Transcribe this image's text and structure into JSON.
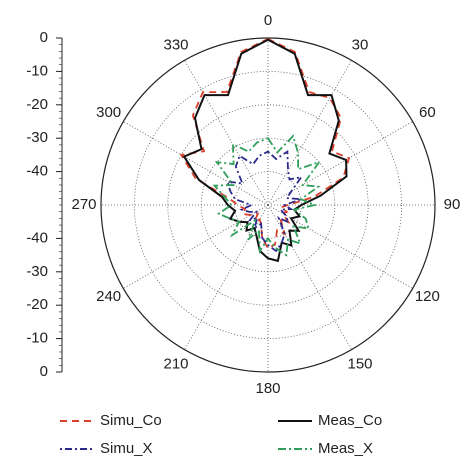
{
  "chart_data": {
    "type": "polar",
    "rlim": [
      -50,
      0
    ],
    "rticks": [
      0,
      -10,
      -20,
      -30,
      -40
    ],
    "angle_ticks": [
      0,
      30,
      60,
      90,
      120,
      150,
      180,
      210,
      240,
      270,
      300,
      330
    ],
    "theta": [
      0,
      10,
      20,
      30,
      40,
      50,
      60,
      70,
      80,
      90,
      100,
      110,
      120,
      130,
      140,
      150,
      160,
      170,
      180,
      190,
      200,
      210,
      220,
      230,
      240,
      250,
      260,
      270,
      280,
      290,
      300,
      310,
      320,
      330,
      340,
      350
    ],
    "series": [
      {
        "name": "Simu_Co",
        "color": "#d9402a",
        "dash": "7,5",
        "values": [
          -0.3,
          -3.5,
          -14,
          -13,
          -16,
          -25,
          -22,
          -26,
          -36,
          -44,
          -46,
          -44,
          -45,
          -42,
          -44,
          -40,
          -42,
          -38,
          -37,
          -40,
          -44,
          -45,
          -44,
          -46,
          -44,
          -42,
          -43,
          -41,
          -38,
          -27,
          -20,
          -25,
          -15,
          -11,
          -14,
          -3.5
        ]
      },
      {
        "name": "Meas_Co",
        "color": "#111111",
        "dash": "none",
        "values": [
          -0.5,
          -4,
          -15,
          -12,
          -17,
          -26,
          -23,
          -25,
          -34,
          -40,
          -42,
          -40,
          -42,
          -38,
          -40,
          -36,
          -38,
          -33,
          -34,
          -36,
          -40,
          -42,
          -40,
          -42,
          -40,
          -38,
          -40,
          -38,
          -36,
          -28,
          -21,
          -24,
          -16,
          -12,
          -15,
          -4
        ]
      },
      {
        "name": "Simu_X",
        "color": "#2b2a8c",
        "dash": "2,3,7,3",
        "values": [
          -34,
          -36,
          -33,
          -38,
          -40,
          -37,
          -42,
          -44,
          -40,
          -45,
          -43,
          -46,
          -44,
          -42,
          -45,
          -40,
          -38,
          -36,
          -38,
          -40,
          -44,
          -42,
          -45,
          -43,
          -46,
          -44,
          -42,
          -45,
          -40,
          -38,
          -36,
          -40,
          -35,
          -33,
          -37,
          -35
        ]
      },
      {
        "name": "Meas_X",
        "color": "#2e9e5a",
        "dash": "8,3,2,3",
        "values": [
          -30,
          -34,
          -28,
          -32,
          -36,
          -30,
          -38,
          -34,
          -40,
          -36,
          -42,
          -38,
          -36,
          -40,
          -35,
          -38,
          -34,
          -37,
          -40,
          -36,
          -42,
          -38,
          -44,
          -36,
          -40,
          -38,
          -35,
          -39,
          -37,
          -33,
          -38,
          -30,
          -34,
          -29,
          -33,
          -31
        ]
      }
    ]
  }
}
